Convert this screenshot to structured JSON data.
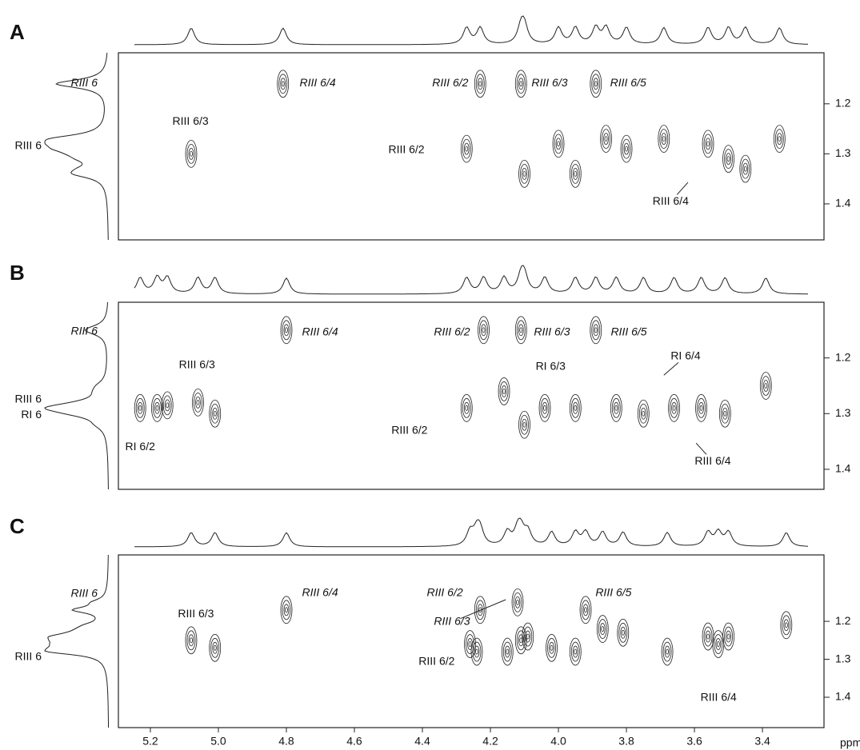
{
  "chart_data": [
    {
      "type": "contour",
      "panel": "A",
      "xlim": [
        5.294,
        3.219
      ],
      "ylim": [
        1.098,
        1.472
      ],
      "yticks": [
        1.2,
        1.3,
        1.4
      ],
      "x": [
        4.81,
        4.23,
        4.11,
        3.89,
        5.08,
        4.27,
        4.1,
        4.0,
        3.95,
        3.86,
        3.8,
        3.69,
        3.56,
        3.5,
        3.45,
        3.35
      ],
      "y": [
        1.16,
        1.16,
        1.16,
        1.16,
        1.3,
        1.29,
        1.34,
        1.28,
        1.34,
        1.27,
        1.29,
        1.27,
        1.28,
        1.31,
        1.33,
        1.27
      ],
      "left_labels": [
        {
          "text": "RIII 6",
          "y": 1.159,
          "italic": true
        },
        {
          "text": "RIII 6",
          "y": 1.285,
          "italic": false
        }
      ],
      "annotations": [
        {
          "text": "RIII 6/4",
          "x": 4.708,
          "y": 1.159,
          "italic": true
        },
        {
          "text": "RIII 6/2",
          "x": 4.318,
          "y": 1.159,
          "italic": true
        },
        {
          "text": "RIII 6/3",
          "x": 4.026,
          "y": 1.159,
          "italic": true
        },
        {
          "text": "RIII 6/5",
          "x": 3.795,
          "y": 1.159,
          "italic": true
        },
        {
          "text": "RIII 6/3",
          "x": 5.082,
          "y": 1.236,
          "italic": false
        },
        {
          "text": "RIII 6/2",
          "x": 4.447,
          "y": 1.293,
          "italic": false
        },
        {
          "text": "RIII 6/4",
          "x": 3.67,
          "y": 1.396,
          "italic": false,
          "arrow": [
            3.619,
            1.357
          ]
        }
      ]
    },
    {
      "type": "contour",
      "panel": "B",
      "xlim": [
        5.294,
        3.219
      ],
      "ylim": [
        1.1,
        1.436
      ],
      "yticks": [
        1.2,
        1.3,
        1.4
      ],
      "x": [
        4.8,
        4.22,
        4.11,
        3.89,
        5.23,
        5.18,
        5.15,
        5.06,
        5.01,
        4.27,
        4.16,
        4.1,
        4.04,
        3.95,
        3.83,
        3.75,
        3.66,
        3.58,
        3.51,
        3.39
      ],
      "y": [
        1.15,
        1.15,
        1.15,
        1.15,
        1.29,
        1.29,
        1.285,
        1.28,
        1.3,
        1.29,
        1.26,
        1.32,
        1.29,
        1.29,
        1.29,
        1.3,
        1.29,
        1.29,
        1.3,
        1.25
      ],
      "left_labels": [
        {
          "text": "RIII 6",
          "y": 1.153,
          "italic": true
        },
        {
          "text": "RIII 6",
          "y": 1.275,
          "italic": false
        },
        {
          "text": "RI 6",
          "y": 1.303,
          "italic": false
        }
      ],
      "annotations": [
        {
          "text": "RIII 6/4",
          "x": 4.701,
          "y": 1.154,
          "italic": true
        },
        {
          "text": "RIII 6/2",
          "x": 4.313,
          "y": 1.154,
          "italic": true
        },
        {
          "text": "RIII 6/3",
          "x": 4.019,
          "y": 1.154,
          "italic": true
        },
        {
          "text": "RIII 6/5",
          "x": 3.793,
          "y": 1.154,
          "italic": true
        },
        {
          "text": "RIII 6/3",
          "x": 5.063,
          "y": 1.213,
          "italic": false
        },
        {
          "text": "RIII 6/2",
          "x": 4.438,
          "y": 1.331,
          "italic": false
        },
        {
          "text": "RI 6/2",
          "x": 5.23,
          "y": 1.36,
          "italic": false
        },
        {
          "text": "RI 6/3",
          "x": 4.023,
          "y": 1.216,
          "italic": false
        },
        {
          "text": "RI 6/4",
          "x": 3.626,
          "y": 1.197,
          "italic": false,
          "arrow": [
            3.69,
            1.231
          ]
        },
        {
          "text": "RIII 6/4",
          "x": 3.546,
          "y": 1.386,
          "italic": false,
          "arrow": [
            3.595,
            1.353
          ]
        }
      ]
    },
    {
      "type": "contour",
      "panel": "C",
      "xlim": [
        5.294,
        3.219
      ],
      "ylim": [
        1.025,
        1.48
      ],
      "yticks": [
        1.2,
        1.3,
        1.4
      ],
      "xticks": [
        5.2,
        {
          "value": 5,
          "label": "5.0"
        },
        4.8,
        4.6,
        4.4,
        4.2,
        {
          "value": 4,
          "label": "4.0"
        },
        3.8,
        3.6,
        3.4
      ],
      "xlabel": "ppm",
      "x": [
        4.8,
        4.23,
        4.12,
        3.92,
        5.08,
        5.01,
        4.26,
        4.24,
        4.15,
        4.11,
        4.09,
        4.02,
        3.95,
        3.87,
        3.81,
        3.68,
        3.56,
        3.53,
        3.5,
        3.33
      ],
      "y": [
        1.17,
        1.17,
        1.15,
        1.17,
        1.25,
        1.27,
        1.26,
        1.28,
        1.28,
        1.25,
        1.24,
        1.27,
        1.28,
        1.22,
        1.23,
        1.28,
        1.24,
        1.26,
        1.24,
        1.21
      ],
      "left_labels": [
        {
          "text": "RIII 6",
          "y": 1.128,
          "italic": true
        },
        {
          "text": "RIII 6",
          "y": 1.294,
          "italic": false
        }
      ],
      "annotations": [
        {
          "text": "RIII 6/4",
          "x": 4.701,
          "y": 1.126,
          "italic": true
        },
        {
          "text": "RIII 6/2",
          "x": 4.334,
          "y": 1.126,
          "italic": true
        },
        {
          "text": "RIII 6/3",
          "x": 4.313,
          "y": 1.202,
          "italic": true,
          "arrow": [
            4.155,
            1.143
          ]
        },
        {
          "text": "RIII 6/5",
          "x": 3.838,
          "y": 1.126,
          "italic": true
        },
        {
          "text": "RIII 6/3",
          "x": 5.066,
          "y": 1.181,
          "italic": false
        },
        {
          "text": "RIII 6/2",
          "x": 4.358,
          "y": 1.307,
          "italic": false
        },
        {
          "text": "RIII 6/4",
          "x": 3.529,
          "y": 1.402,
          "italic": false
        }
      ]
    }
  ]
}
